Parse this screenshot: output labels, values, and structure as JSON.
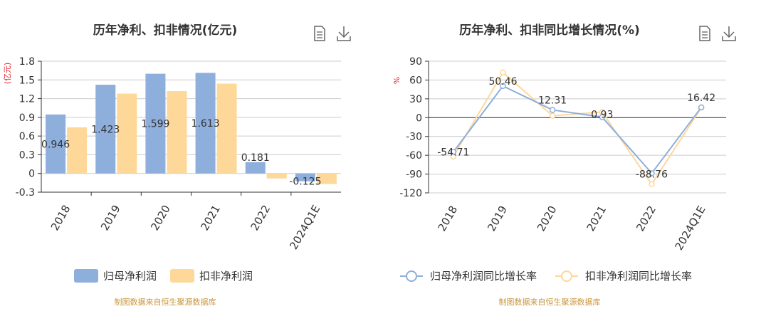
{
  "colors": {
    "primary": "#8eaedc",
    "secondary": "#fed899",
    "source_text": "#c8963c",
    "unit_text": "#e0262e"
  },
  "toolbar": {
    "icons": [
      "document-icon",
      "download-icon"
    ]
  },
  "chart_data": [
    {
      "type": "bar",
      "title": "历年净利、扣非情况(亿元)",
      "ylabel": "(亿元)",
      "categories": [
        "2018",
        "2019",
        "2020",
        "2021",
        "2022",
        "2024Q1E"
      ],
      "yticks": [
        "1.8",
        "1.5",
        "1.2",
        "0.9",
        "0.6",
        "0.3",
        "0",
        "-0.3"
      ],
      "ylim": [
        -0.3,
        1.8
      ],
      "grid": true,
      "legend_position": "bottom",
      "series": [
        {
          "name": "归母净利润",
          "values": [
            0.946,
            1.423,
            1.599,
            1.613,
            0.181,
            -0.125
          ],
          "labels": [
            "0.946",
            "1.423",
            "1.599",
            "1.613",
            "0.181",
            "-0.125"
          ]
        },
        {
          "name": "扣非净利润",
          "values": [
            0.74,
            1.28,
            1.32,
            1.44,
            -0.08,
            -0.17
          ]
        }
      ],
      "source": "制图数据来自恒生聚源数据库"
    },
    {
      "type": "line",
      "title": "历年净利、扣非同比增长情况(%)",
      "ylabel": "%",
      "categories": [
        "2018",
        "2019",
        "2020",
        "2021",
        "2022",
        "2024Q1E"
      ],
      "yticks": [
        "90",
        "60",
        "30",
        "0",
        "-30",
        "-60",
        "-90",
        "-120"
      ],
      "ylim": [
        -120,
        90
      ],
      "grid": true,
      "legend_position": "bottom",
      "series": [
        {
          "name": "归母净利润同比增长率",
          "values": [
            -54.71,
            50.46,
            12.31,
            0.93,
            -88.76,
            16.42
          ],
          "labels": [
            "-54.71",
            "50.46",
            "12.31",
            "0.93",
            "-88.76",
            "16.42"
          ]
        },
        {
          "name": "扣非净利润同比增长率",
          "values": [
            -62,
            72,
            3,
            9,
            -106,
            16
          ]
        }
      ],
      "source": "制图数据来自恒生聚源数据库"
    }
  ]
}
